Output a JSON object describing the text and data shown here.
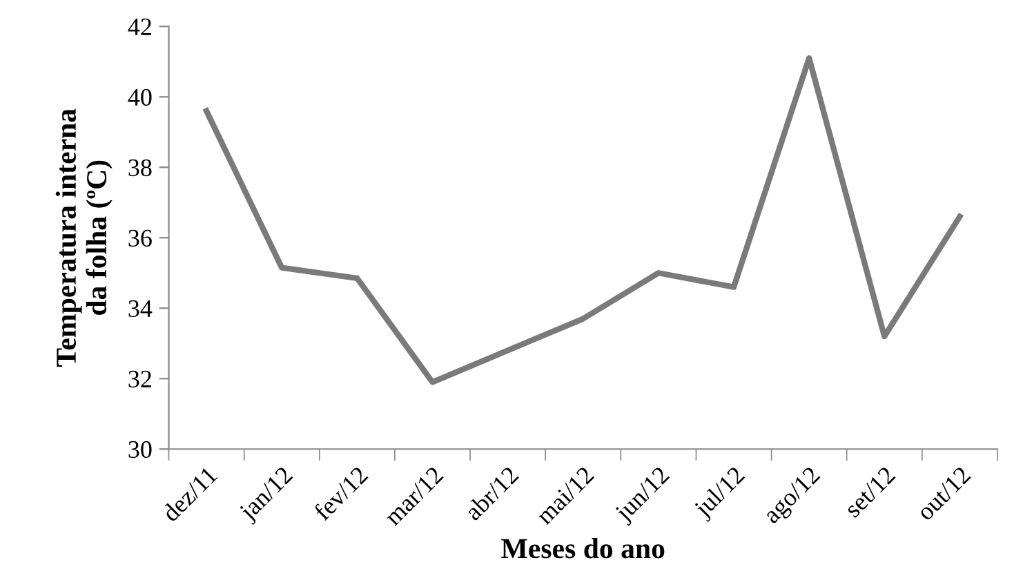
{
  "chart_data": {
    "type": "line",
    "xlabel": "Meses do ano",
    "ylabel": "Temperatura interna\nda folha (ºC)",
    "categories": [
      "dez/11",
      "jan/12",
      "fev/12",
      "mar/12",
      "abr/12",
      "mai/12",
      "jun/12",
      "jul/12",
      "ago/12",
      "set/12",
      "out/12"
    ],
    "series": [
      {
        "color": "#7a7a7a",
        "values": [
          39.6,
          35.15,
          34.85,
          31.9,
          32.8,
          33.7,
          35.0,
          34.6,
          41.1,
          33.2,
          36.6
        ]
      }
    ],
    "ylim": [
      30,
      42
    ],
    "yticks": [
      30,
      32,
      34,
      36,
      38,
      40,
      42
    ],
    "grid": false,
    "marker": "none",
    "line_style": "solid"
  }
}
